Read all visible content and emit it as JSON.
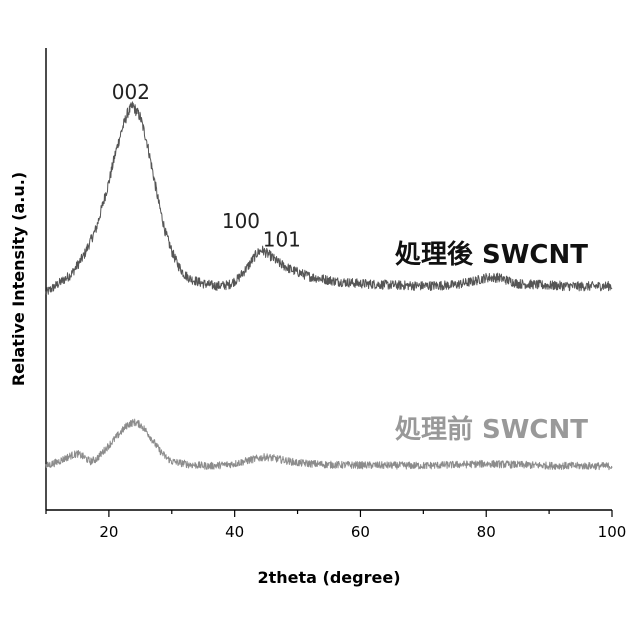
{
  "chart_data": {
    "type": "line",
    "xlabel": "2theta (degree)",
    "ylabel": "Relative Intensity (a.u.)",
    "xlim": [
      10,
      100
    ],
    "ylim": [
      0,
      100
    ],
    "x_ticks": [
      20,
      40,
      60,
      80,
      100
    ],
    "y_ticks_labeled": false,
    "grid": false,
    "legend": "none",
    "series": [
      {
        "name": "処理後 SWCNT",
        "color": "#555555",
        "label_color": "#111111",
        "points": [
          [
            10,
            47
          ],
          [
            12,
            49
          ],
          [
            14,
            51
          ],
          [
            16,
            55
          ],
          [
            18,
            61
          ],
          [
            20,
            71
          ],
          [
            21,
            77
          ],
          [
            22,
            82
          ],
          [
            23,
            86
          ],
          [
            23.8,
            87.5
          ],
          [
            25,
            85
          ],
          [
            26,
            80
          ],
          [
            27,
            73
          ],
          [
            28,
            66
          ],
          [
            29,
            60
          ],
          [
            30,
            56
          ],
          [
            31,
            53
          ],
          [
            32,
            51
          ],
          [
            33,
            50
          ],
          [
            35,
            49
          ],
          [
            37,
            48.5
          ],
          [
            39,
            48.7
          ],
          [
            40.5,
            50
          ],
          [
            42,
            52.5
          ],
          [
            43.5,
            55.5
          ],
          [
            44.3,
            56.3
          ],
          [
            45.5,
            55.2
          ],
          [
            47,
            53.5
          ],
          [
            49,
            52
          ],
          [
            52,
            50.5
          ],
          [
            56,
            49.5
          ],
          [
            60,
            49
          ],
          [
            65,
            48.7
          ],
          [
            70,
            48.5
          ],
          [
            75,
            48.7
          ],
          [
            78,
            49.5
          ],
          [
            80,
            50.3
          ],
          [
            82,
            50.3
          ],
          [
            85,
            49
          ],
          [
            90,
            48.6
          ],
          [
            95,
            48.4
          ],
          [
            100,
            48.5
          ]
        ]
      },
      {
        "name": "処理前 SWCNT",
        "color": "#8c8c8c",
        "label_color": "#999999",
        "points": [
          [
            10,
            9.5
          ],
          [
            12,
            10.5
          ],
          [
            14,
            11.8
          ],
          [
            15,
            12.2
          ],
          [
            16,
            11.5
          ],
          [
            17,
            10.5
          ],
          [
            18,
            11
          ],
          [
            19,
            12.5
          ],
          [
            20,
            14
          ],
          [
            21,
            15.5
          ],
          [
            22,
            17
          ],
          [
            23,
            18.5
          ],
          [
            24,
            19
          ],
          [
            25,
            18.5
          ],
          [
            26,
            17
          ],
          [
            27,
            15
          ],
          [
            28,
            13
          ],
          [
            29,
            11.5
          ],
          [
            30,
            10.5
          ],
          [
            33,
            9.8
          ],
          [
            36,
            9.5
          ],
          [
            40,
            10
          ],
          [
            43,
            11
          ],
          [
            45,
            11.5
          ],
          [
            47,
            11
          ],
          [
            50,
            10.2
          ],
          [
            55,
            9.8
          ],
          [
            60,
            9.7
          ],
          [
            70,
            9.6
          ],
          [
            80,
            10
          ],
          [
            85,
            9.8
          ],
          [
            90,
            9.6
          ],
          [
            100,
            9.5
          ]
        ]
      }
    ],
    "annotations": [
      {
        "text": "002",
        "x": 23.5,
        "y": 89
      },
      {
        "text": "100",
        "x": 41,
        "y": 61
      },
      {
        "text": "101",
        "x": 47.5,
        "y": 57
      }
    ]
  }
}
